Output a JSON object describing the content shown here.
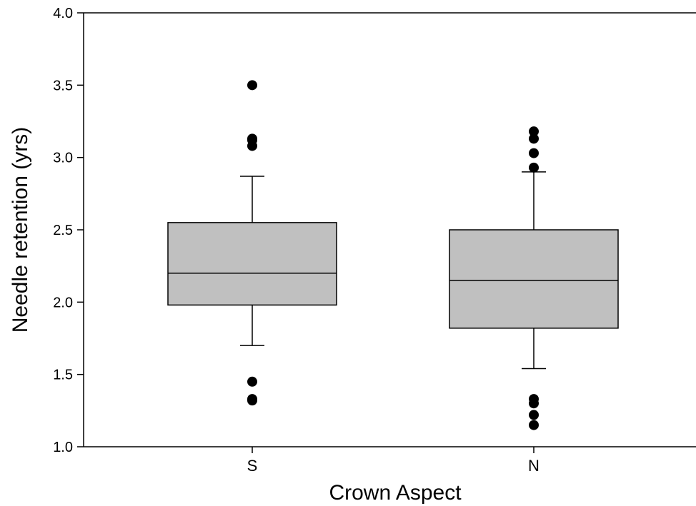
{
  "colors": {
    "box_fill": "#c0c0c0",
    "stroke": "#000000",
    "outlier": "#000000",
    "background": "#ffffff"
  },
  "chart_data": {
    "type": "box",
    "title": "",
    "xlabel": "Crown Aspect",
    "ylabel": "Needle retention (yrs)",
    "ylim": [
      1.0,
      4.0
    ],
    "yticks": [
      1.0,
      1.5,
      2.0,
      2.5,
      3.0,
      3.5,
      4.0
    ],
    "ytick_labels": [
      "1.0",
      "1.5",
      "2.0",
      "2.5",
      "3.0",
      "3.5",
      "4.0"
    ],
    "grid": false,
    "categories": [
      "S",
      "N"
    ],
    "boxes": [
      {
        "category": "S",
        "whisker_low": 1.7,
        "q1": 1.98,
        "median": 2.2,
        "q3": 2.55,
        "whisker_high": 2.87,
        "outliers": [
          3.5,
          3.13,
          3.12,
          3.08,
          1.45,
          1.32,
          1.33
        ]
      },
      {
        "category": "N",
        "whisker_low": 1.54,
        "q1": 1.82,
        "median": 2.15,
        "q3": 2.5,
        "whisker_high": 2.9,
        "outliers": [
          3.18,
          3.13,
          3.03,
          2.93,
          1.33,
          1.3,
          1.22,
          1.15
        ]
      }
    ]
  }
}
